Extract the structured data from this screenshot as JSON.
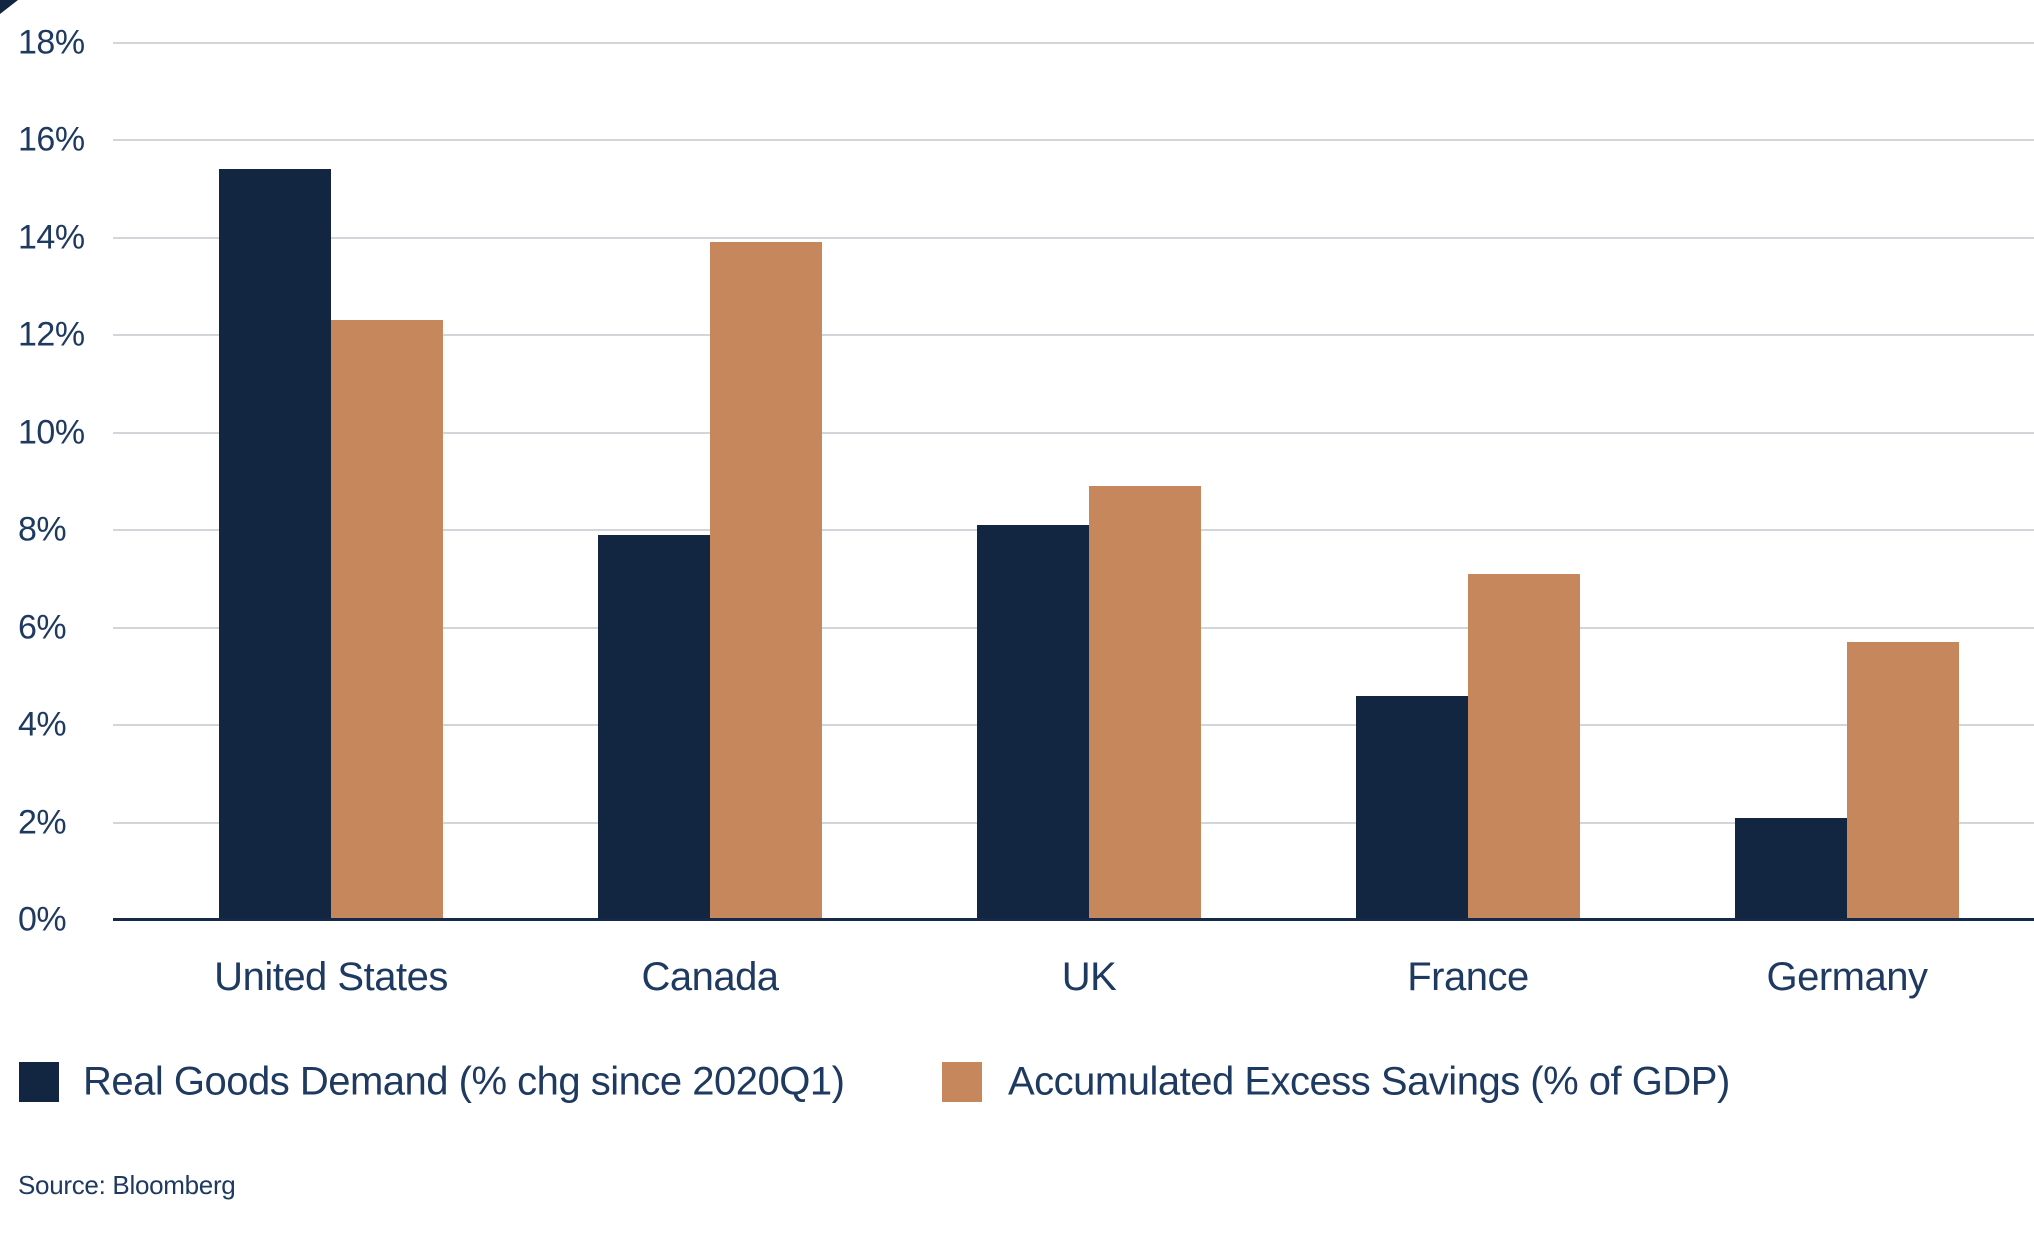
{
  "chart_data": {
    "type": "bar",
    "categories": [
      "United States",
      "Canada",
      "UK",
      "France",
      "Germany"
    ],
    "series": [
      {
        "name": "Real Goods Demand (% chg since 2020Q1)",
        "color": "#122642",
        "values": [
          15.4,
          7.9,
          8.1,
          4.6,
          2.1
        ]
      },
      {
        "name": "Accumulated Excess Savings (% of GDP)",
        "color": "#C5875B",
        "values": [
          12.3,
          13.9,
          8.9,
          7.1,
          5.7
        ]
      }
    ],
    "title": "",
    "xlabel": "",
    "ylabel": "",
    "y_axis": {
      "min": 0,
      "max": 18,
      "step": 2,
      "tick_labels": [
        "0%",
        "2%",
        "4%",
        "6%",
        "8%",
        "10%",
        "12%",
        "14%",
        "16%",
        "18%"
      ]
    },
    "grid": true,
    "legend_position": "bottom"
  },
  "source": {
    "label": "Source: Bloomberg"
  },
  "colors": {
    "background": "#ffffff",
    "gridline": "#D2D6DA",
    "axis_line": "#15294B",
    "text": "#1F3A60",
    "series_1": "#122642",
    "series_2": "#C5875B"
  }
}
